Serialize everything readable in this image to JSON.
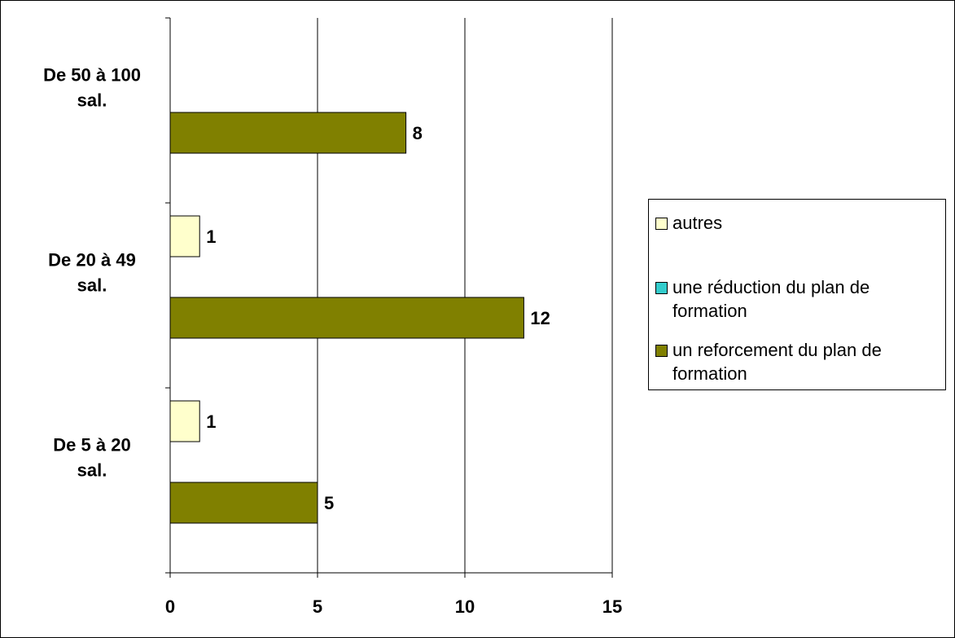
{
  "chart_data": {
    "type": "bar",
    "orientation": "horizontal",
    "categories": [
      "De 50 à 100 sal.",
      "De 20 à 49 sal.",
      "De 5 à 20 sal."
    ],
    "series": [
      {
        "name": "autres",
        "values": [
          0,
          1,
          1
        ],
        "color": "#FFFFCC"
      },
      {
        "name": "une réduction du plan de formation",
        "values": [
          0,
          0,
          0
        ],
        "color": "#33CCCC"
      },
      {
        "name": "un reforcement du plan de formation",
        "values": [
          8,
          12,
          5
        ],
        "color": "#808000"
      }
    ],
    "data_labels": {
      "autres": [
        "",
        "1",
        "1"
      ],
      "un reforcement du plan de formation": [
        "8",
        "12",
        "5"
      ]
    },
    "x_ticks": [
      "0",
      "5",
      "10",
      "15"
    ],
    "xlim": [
      0,
      15
    ],
    "grid": "vertical major gridlines",
    "legend_position": "right",
    "title": "",
    "xlabel": "",
    "ylabel": ""
  }
}
